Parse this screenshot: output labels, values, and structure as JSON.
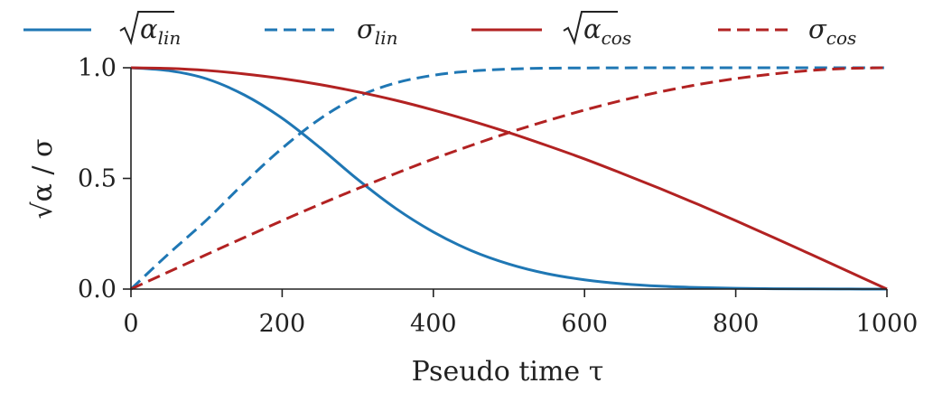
{
  "chart_data": {
    "type": "line",
    "title": "",
    "xlabel": "Pseudo time τ",
    "ylabel": "√α / σ",
    "xlim": [
      0,
      1000
    ],
    "ylim": [
      0,
      1
    ],
    "x_ticks": [
      0,
      200,
      400,
      600,
      800,
      1000
    ],
    "x_tick_labels": [
      "0",
      "200",
      "400",
      "600",
      "800",
      "1000"
    ],
    "y_ticks": [
      0,
      0.5,
      1
    ],
    "y_tick_labels": [
      "0.0",
      "0.5",
      "1.0"
    ],
    "grid": false,
    "legend_position": "top",
    "x": [
      0,
      50,
      100,
      150,
      200,
      250,
      300,
      350,
      400,
      450,
      500,
      550,
      600,
      650,
      700,
      750,
      800,
      850,
      900,
      950,
      1000
    ],
    "series": [
      {
        "name": "√α_lin",
        "legend_main": "α",
        "legend_sub": "lin",
        "legend_sqrt": true,
        "color": "#1f77b4",
        "dash": "solid",
        "values": [
          1.0,
          0.987,
          0.95,
          0.877,
          0.772,
          0.639,
          0.495,
          0.365,
          0.258,
          0.174,
          0.113,
          0.07,
          0.042,
          0.024,
          0.013,
          0.007,
          0.0035,
          0.0017,
          0.0008,
          0.0003,
          0.0
        ]
      },
      {
        "name": "σ_lin",
        "legend_main": "σ",
        "legend_sub": "lin",
        "legend_sqrt": false,
        "color": "#1f77b4",
        "dash": "dashed",
        "values": [
          0.0,
          0.16,
          0.312,
          0.48,
          0.636,
          0.769,
          0.869,
          0.931,
          0.966,
          0.985,
          0.994,
          0.998,
          0.9991,
          0.9997,
          0.9999,
          1.0,
          1.0,
          1.0,
          1.0,
          1.0,
          1.0
        ]
      },
      {
        "name": "√α_cos",
        "legend_main": "α",
        "legend_sub": "cos",
        "legend_sqrt": true,
        "color": "#b22222",
        "dash": "solid",
        "values": [
          1.0,
          0.997,
          0.988,
          0.972,
          0.951,
          0.924,
          0.891,
          0.853,
          0.809,
          0.76,
          0.707,
          0.649,
          0.588,
          0.522,
          0.454,
          0.383,
          0.309,
          0.233,
          0.156,
          0.078,
          0.0
        ]
      },
      {
        "name": "σ_cos",
        "legend_main": "σ",
        "legend_sub": "cos",
        "legend_sqrt": false,
        "color": "#b22222",
        "dash": "dashed",
        "values": [
          0.0,
          0.078,
          0.156,
          0.233,
          0.309,
          0.383,
          0.454,
          0.522,
          0.588,
          0.649,
          0.707,
          0.76,
          0.809,
          0.853,
          0.891,
          0.924,
          0.951,
          0.972,
          0.988,
          0.997,
          1.0
        ]
      }
    ]
  }
}
